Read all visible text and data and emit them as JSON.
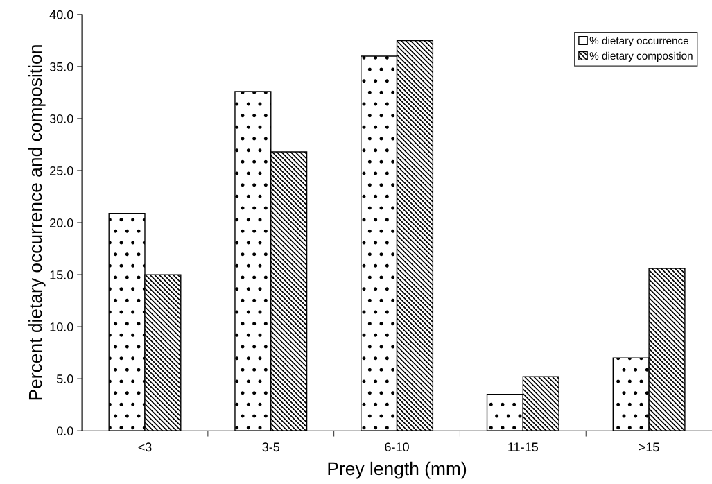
{
  "chart_data": {
    "type": "bar",
    "xlabel": "Prey length (mm)",
    "ylabel": "Percent dietary occurrence and composition",
    "categories": [
      "<3",
      "3-5",
      "6-10",
      "11-15",
      ">15"
    ],
    "series": [
      {
        "name": "% dietary occurrence",
        "color": "#000000",
        "values": [
          20.9,
          32.6,
          36.0,
          3.5,
          7.0
        ]
      },
      {
        "name": "% dietary composition",
        "color": "#000000",
        "values": [
          15.0,
          26.8,
          37.5,
          5.2,
          15.6
        ]
      }
    ],
    "ylim": [
      0,
      40
    ],
    "yticks": [
      {
        "value": 0,
        "label": "0.0"
      },
      {
        "value": 5,
        "label": "5.0"
      },
      {
        "value": 10,
        "label": "10.0"
      },
      {
        "value": 15,
        "label": "15.0"
      },
      {
        "value": 20,
        "label": "20.0"
      },
      {
        "value": 25,
        "label": "25.0"
      },
      {
        "value": 30,
        "label": "30.0"
      },
      {
        "value": 35,
        "label": "35.0"
      },
      {
        "value": 40,
        "label": "40.0"
      }
    ],
    "grid": false,
    "legend": "top right"
  }
}
